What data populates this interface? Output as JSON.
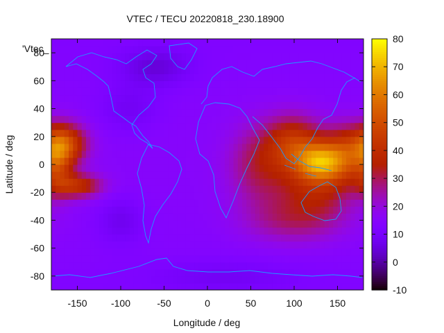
{
  "chart_data": {
    "type": "heatmap",
    "title": "VTEC / TECU 20220818_230.18900",
    "xlabel": "Longitude / deg",
    "ylabel": "Latitude / deg",
    "key_label": "'Vtec_",
    "xlim": [
      -180,
      180
    ],
    "ylim": [
      -90,
      90
    ],
    "x_ticks": [
      -150,
      -100,
      -50,
      0,
      50,
      100,
      150
    ],
    "y_ticks": [
      -80,
      -60,
      -40,
      -20,
      0,
      20,
      40,
      60,
      80
    ],
    "colorbar": {
      "range": [
        -10,
        80
      ],
      "ticks": [
        -10,
        0,
        10,
        20,
        30,
        40,
        50,
        60,
        70,
        80
      ]
    },
    "grid": false,
    "background_value": 13,
    "hotspots": [
      {
        "lon": -165,
        "lat": 15,
        "peak": 52,
        "sx": 18,
        "sy": 10
      },
      {
        "lon": -150,
        "lat": -15,
        "peak": 40,
        "sx": 20,
        "sy": 6
      },
      {
        "lon": -172,
        "lat": 0,
        "peak": 32,
        "sx": 12,
        "sy": 14
      },
      {
        "lon": 100,
        "lat": 15,
        "peak": 42,
        "sx": 22,
        "sy": 14
      },
      {
        "lon": 130,
        "lat": 2,
        "peak": 63,
        "sx": 20,
        "sy": 10
      },
      {
        "lon": 160,
        "lat": 8,
        "peak": 40,
        "sx": 20,
        "sy": 14
      },
      {
        "lon": 125,
        "lat": -18,
        "peak": 28,
        "sx": 30,
        "sy": 14
      },
      {
        "lon": 60,
        "lat": 0,
        "peak": 25,
        "sx": 25,
        "sy": 20
      },
      {
        "lon": 100,
        "lat": -40,
        "peak": 20,
        "sx": 40,
        "sy": 12
      }
    ],
    "coldspots": [
      {
        "lon": -60,
        "lat": 70,
        "depth": 9,
        "sx": 30,
        "sy": 10
      },
      {
        "lon": -90,
        "lat": 40,
        "depth": 6,
        "sx": 25,
        "sy": 12
      },
      {
        "lon": -100,
        "lat": -40,
        "depth": 7,
        "sx": 20,
        "sy": 12
      },
      {
        "lon": 20,
        "lat": -80,
        "depth": 5,
        "sx": 60,
        "sy": 8
      }
    ],
    "cell_size_deg": 5
  }
}
